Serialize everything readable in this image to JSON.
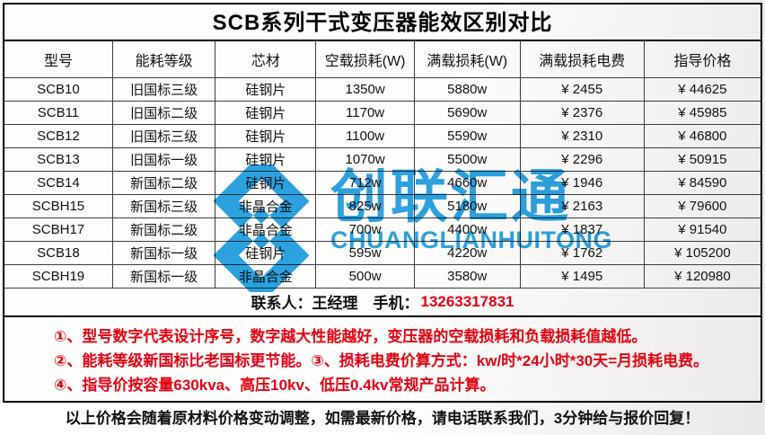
{
  "title": "SCB系列干式变压器能效区别对比",
  "table": {
    "headers": [
      "型号",
      "能耗等级",
      "芯材",
      "空载损耗(W)",
      "满载损耗(W)",
      "满载损耗电费",
      "指导价格"
    ],
    "rows": [
      [
        "SCB10",
        "旧国标三级",
        "硅钢片",
        "1350w",
        "5880w",
        "¥ 2455",
        "¥ 44625"
      ],
      [
        "SCB11",
        "旧国标二级",
        "硅钢片",
        "1170w",
        "5690w",
        "¥ 2376",
        "¥ 45985"
      ],
      [
        "SCB12",
        "旧国标三级",
        "硅钢片",
        "1100w",
        "5590w",
        "¥ 2310",
        "¥ 46800"
      ],
      [
        "SCB13",
        "旧国标一级",
        "硅钢片",
        "1070w",
        "5500w",
        "¥ 2296",
        "¥ 50915"
      ],
      [
        "SCB14",
        "新国标二级",
        "硅钢片",
        "712w",
        "4660w",
        "¥ 1946",
        "¥ 84590"
      ],
      [
        "SCBH15",
        "新国标三级",
        "非晶合金",
        "825w",
        "5180w",
        "¥ 2163",
        "¥ 79600"
      ],
      [
        "SCBH17",
        "新国标二级",
        "非晶合金",
        "700w",
        "4400w",
        "¥ 1837",
        "¥ 91540"
      ],
      [
        "SCB18",
        "新国标一级",
        "硅钢片",
        "595w",
        "4220w",
        "¥ 1762",
        "¥ 105200"
      ],
      [
        "SCBH19",
        "新国标一级",
        "非晶合金",
        "500w",
        "3580w",
        "¥ 1495",
        "¥ 120980"
      ]
    ]
  },
  "contact": {
    "label": "联系人：王经理　手机：",
    "phone": "13263317831"
  },
  "notes": [
    "①、型号数字代表设计序号，数字越大性能越好，变压器的空载损耗和负载损耗值越低。",
    "②、能耗等级新国标比老国标更节能。③、损耗电费价算方式：kw/时*24小时*30天=月损耗电费。",
    "④、指导价按容量630kva、高压10kv、低压0.4kv常规产品计算。"
  ],
  "footer": "以上价格会随着原材料价格变动调整，如需最新价格，请电话联系我们，3分钟给与报价回复！",
  "watermark": {
    "cn": "创联汇通",
    "en": "CHUANGLIANHUITONG",
    "color": "#1B9CE0"
  },
  "colors": {
    "accent_blue": "#1B9CE0",
    "note_red": "#E60012",
    "border_black": "#000000"
  }
}
